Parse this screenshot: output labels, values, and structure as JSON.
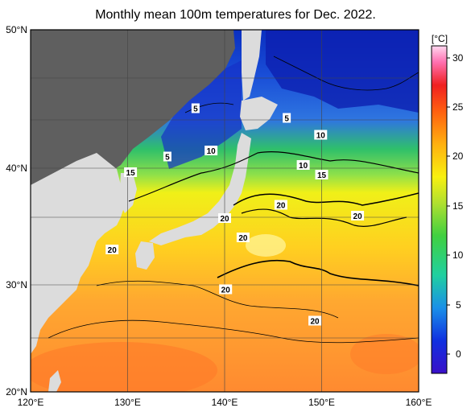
{
  "title": "Monthly mean 100m temperatures for Dec. 2022.",
  "map": {
    "lon_ticks": [
      "120°E",
      "130°E",
      "140°E",
      "150°E",
      "160°E"
    ],
    "lat_ticks": [
      "50°N",
      "40°N",
      "30°N",
      "20°N"
    ],
    "lon_range": [
      120,
      160
    ],
    "lat_range": [
      20,
      50
    ],
    "grid": true
  },
  "colorbar": {
    "unit": "[°C]",
    "ticks": [
      "30",
      "25",
      "20",
      "15",
      "10",
      "5",
      "0"
    ],
    "range": [
      -2,
      32
    ]
  },
  "contour_labels": [
    {
      "text": "5",
      "lon": 137.0,
      "lat": 43.5
    },
    {
      "text": "5",
      "lon": 134.1,
      "lat": 39.5
    },
    {
      "text": "5",
      "lon": 146.4,
      "lat": 42.7
    },
    {
      "text": "10",
      "lon": 138.6,
      "lat": 40.0
    },
    {
      "text": "10",
      "lon": 149.9,
      "lat": 41.3
    },
    {
      "text": "10",
      "lon": 148.1,
      "lat": 38.8
    },
    {
      "text": "15",
      "lon": 130.3,
      "lat": 38.2
    },
    {
      "text": "15",
      "lon": 150.0,
      "lat": 38.0
    },
    {
      "text": "20",
      "lon": 145.8,
      "lat": 35.5
    },
    {
      "text": "20",
      "lon": 153.7,
      "lat": 34.6
    },
    {
      "text": "20",
      "lon": 140.0,
      "lat": 34.4
    },
    {
      "text": "20",
      "lon": 141.9,
      "lat": 32.8
    },
    {
      "text": "20",
      "lon": 128.4,
      "lat": 31.8
    },
    {
      "text": "20",
      "lon": 140.1,
      "lat": 28.5
    },
    {
      "text": "20",
      "lon": 149.3,
      "lat": 25.9
    }
  ]
}
